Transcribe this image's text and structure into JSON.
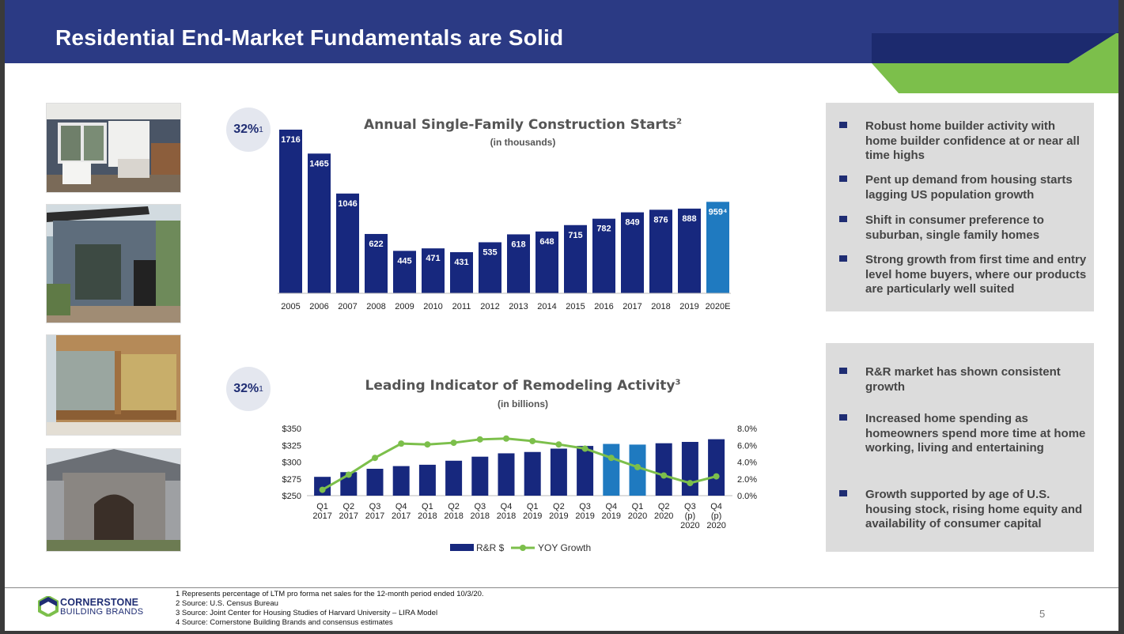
{
  "header": {
    "title": "Residential End-Market Fundamentals are Solid"
  },
  "colors": {
    "navy": "#2b3a84",
    "bar_navy": "#17287e",
    "bar_highlight": "#1f7ac0",
    "green": "#7cbf4b",
    "panel_gray": "#dcdcdc"
  },
  "photos": [
    {
      "icon": "porch-photo-icon"
    },
    {
      "icon": "modern-house-photo-icon"
    },
    {
      "icon": "window-interior-photo-icon"
    },
    {
      "icon": "stone-entry-photo-icon"
    }
  ],
  "chart1": {
    "badge_value": "32%",
    "badge_sup": "1",
    "title": "Annual Single-Family Construction Starts",
    "title_sup": "2",
    "subtitle": "(in thousands)"
  },
  "chart2": {
    "badge_value": "32%",
    "badge_sup": "1",
    "title": "Leading Indicator of Remodeling Activity",
    "title_sup": "3",
    "subtitle": "(in billions)"
  },
  "chart_data": [
    {
      "type": "bar",
      "title": "Annual Single-Family Construction Starts",
      "subtitle": "(in thousands)",
      "categories": [
        "2005",
        "2006",
        "2007",
        "2008",
        "2009",
        "2010",
        "2011",
        "2012",
        "2013",
        "2014",
        "2015",
        "2016",
        "2017",
        "2018",
        "2019",
        "2020E"
      ],
      "values": [
        1716,
        1465,
        1046,
        622,
        445,
        471,
        431,
        535,
        618,
        648,
        715,
        782,
        849,
        876,
        888,
        959
      ],
      "labels": [
        "1716",
        "1465",
        "1046",
        "622",
        "445",
        "471",
        "431",
        "535",
        "618",
        "648",
        "715",
        "782",
        "849",
        "876",
        "888",
        "959⁴"
      ],
      "highlight_index": 15,
      "ylim": [
        0,
        1716
      ]
    },
    {
      "type": "bar+line",
      "title": "Leading Indicator of Remodeling Activity",
      "subtitle": "(in billions)",
      "categories": [
        [
          "Q1",
          "2017"
        ],
        [
          "Q2",
          "2017"
        ],
        [
          "Q3",
          "2017"
        ],
        [
          "Q4",
          "2017"
        ],
        [
          "Q1",
          "2018"
        ],
        [
          "Q2",
          "2018"
        ],
        [
          "Q3",
          "2018"
        ],
        [
          "Q4",
          "2018"
        ],
        [
          "Q1",
          "2019"
        ],
        [
          "Q2",
          "2019"
        ],
        [
          "Q3",
          "2019"
        ],
        [
          "Q4",
          "2019"
        ],
        [
          "Q1",
          "2020"
        ],
        [
          "Q2",
          "2020"
        ],
        [
          "Q3",
          "(p)",
          "2020"
        ],
        [
          "Q4",
          "(p)",
          "2020"
        ]
      ],
      "series": [
        {
          "name": "R&R $",
          "axis": "left",
          "values": [
            278,
            285,
            290,
            294,
            296,
            302,
            308,
            313,
            315,
            320,
            324,
            327,
            326,
            328,
            330,
            334
          ],
          "highlight_indices": [
            11,
            12
          ]
        },
        {
          "name": "YOY Growth",
          "axis": "right",
          "values": [
            0.7,
            2.5,
            4.5,
            6.2,
            6.1,
            6.3,
            6.7,
            6.8,
            6.5,
            6.1,
            5.6,
            4.5,
            3.4,
            2.4,
            1.5,
            2.3
          ]
        }
      ],
      "y_left_ticks": [
        "$350",
        "$325",
        "$300",
        "$275",
        "$250"
      ],
      "y_left_range": [
        250,
        350
      ],
      "y_right_ticks": [
        "8.0%",
        "6.0%",
        "4.0%",
        "2.0%",
        "0.0%"
      ],
      "y_right_range": [
        0,
        8
      ],
      "legend": {
        "bar": "R&R $",
        "line": "YOY Growth",
        "position": "bottom"
      }
    }
  ],
  "panel1": {
    "bullets": [
      "Robust home builder activity with home builder confidence at or near all time highs",
      "Pent up demand from housing starts lagging US population growth",
      "Shift in consumer preference to suburban, single family homes",
      "Strong growth from first time and entry level home buyers, where our products are particularly well suited"
    ]
  },
  "panel2": {
    "bullets": [
      "R&R market has shown consistent growth",
      "Increased home spending as homeowners spend more time at home working, living and entertaining",
      "Growth supported by age of U.S. housing stock, rising home equity and availability of consumer capital"
    ]
  },
  "footer": {
    "notes": [
      "1 Represents percentage of LTM pro forma net sales for the 12-month period ended 10/3/20.",
      "2 Source: U.S. Census Bureau",
      "3 Source: Joint Center for Housing Studies of Harvard University – LIRA Model",
      "4 Source: Cornerstone Building Brands and consensus estimates"
    ],
    "logo_line1": "CORNERSTONE",
    "logo_line2": "BUILDING BRANDS",
    "page_number": "5"
  }
}
